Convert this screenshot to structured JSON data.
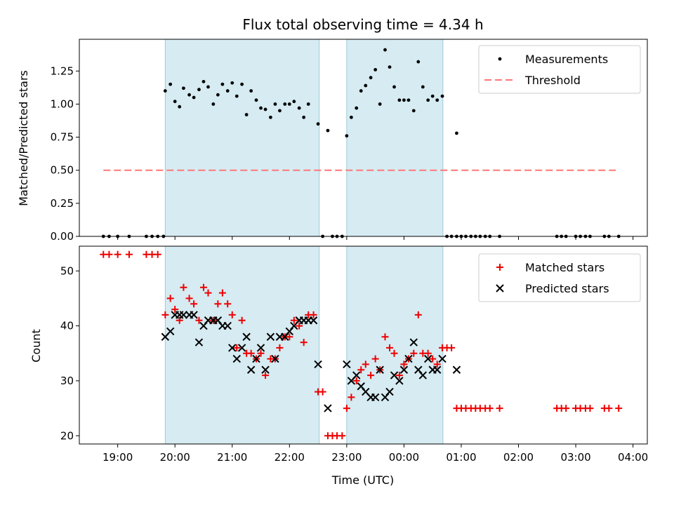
{
  "chart_data": [
    {
      "type": "scatter",
      "panel": "top",
      "title": "Flux total observing time = 4.34 h",
      "xlabel": "",
      "ylabel": "Matched/Predicted stars",
      "xlim": [
        18.33,
        28.25
      ],
      "ylim": [
        0,
        1.49
      ],
      "yticks": [
        0,
        0.25,
        0.5,
        0.75,
        1.0,
        1.25
      ],
      "ytick_labels": [
        "0.00",
        "0.25",
        "0.50",
        "0.75",
        "1.00",
        "1.25"
      ],
      "legend_position": "top-right",
      "legend": [
        "Measurements",
        "Threshold"
      ],
      "shaded_intervals": [
        [
          19.83,
          22.52
        ],
        [
          23.0,
          24.68
        ]
      ],
      "threshold": {
        "name": "Threshold",
        "y": 0.5,
        "x_start": 18.75,
        "x_end": 27.75,
        "color": "#ff7777"
      },
      "series": [
        {
          "name": "Measurements",
          "color": "#000000",
          "points": [
            [
              18.75,
              0
            ],
            [
              18.85,
              0
            ],
            [
              19.0,
              0
            ],
            [
              19.2,
              0
            ],
            [
              19.5,
              0
            ],
            [
              19.6,
              0
            ],
            [
              19.7,
              0
            ],
            [
              19.8,
              0
            ],
            [
              19.83,
              1.1
            ],
            [
              19.92,
              1.15
            ],
            [
              20.0,
              1.02
            ],
            [
              20.08,
              0.98
            ],
            [
              20.15,
              1.12
            ],
            [
              20.25,
              1.07
            ],
            [
              20.33,
              1.05
            ],
            [
              20.42,
              1.11
            ],
            [
              20.5,
              1.17
            ],
            [
              20.58,
              1.13
            ],
            [
              20.67,
              1.0
            ],
            [
              20.75,
              1.07
            ],
            [
              20.83,
              1.15
            ],
            [
              20.92,
              1.1
            ],
            [
              21.0,
              1.16
            ],
            [
              21.08,
              1.06
            ],
            [
              21.17,
              1.15
            ],
            [
              21.25,
              0.92
            ],
            [
              21.33,
              1.1
            ],
            [
              21.42,
              1.03
            ],
            [
              21.5,
              0.97
            ],
            [
              21.58,
              0.96
            ],
            [
              21.67,
              0.9
            ],
            [
              21.75,
              1.0
            ],
            [
              21.83,
              0.95
            ],
            [
              21.92,
              1.0
            ],
            [
              22.0,
              1.0
            ],
            [
              22.08,
              1.02
            ],
            [
              22.17,
              0.97
            ],
            [
              22.25,
              0.9
            ],
            [
              22.33,
              1.0
            ],
            [
              22.5,
              0.85
            ],
            [
              22.67,
              0.8
            ],
            [
              22.58,
              0
            ],
            [
              22.75,
              0
            ],
            [
              22.83,
              0
            ],
            [
              22.92,
              0
            ],
            [
              23.0,
              0.76
            ],
            [
              23.08,
              0.9
            ],
            [
              23.17,
              0.97
            ],
            [
              23.25,
              1.1
            ],
            [
              23.33,
              1.14
            ],
            [
              23.42,
              1.2
            ],
            [
              23.5,
              1.26
            ],
            [
              23.58,
              1.0
            ],
            [
              23.67,
              1.41
            ],
            [
              23.75,
              1.28
            ],
            [
              23.83,
              1.13
            ],
            [
              23.92,
              1.03
            ],
            [
              24.0,
              1.03
            ],
            [
              24.08,
              1.03
            ],
            [
              24.17,
              0.95
            ],
            [
              24.25,
              1.32
            ],
            [
              24.33,
              1.13
            ],
            [
              24.42,
              1.03
            ],
            [
              24.5,
              1.06
            ],
            [
              24.58,
              1.03
            ],
            [
              24.67,
              1.06
            ],
            [
              24.92,
              0.78
            ],
            [
              24.75,
              0
            ],
            [
              24.83,
              0
            ],
            [
              24.92,
              0
            ],
            [
              25.0,
              0
            ],
            [
              25.08,
              0
            ],
            [
              25.17,
              0
            ],
            [
              25.25,
              0
            ],
            [
              25.33,
              0
            ],
            [
              25.42,
              0
            ],
            [
              25.5,
              0
            ],
            [
              25.67,
              0
            ],
            [
              26.67,
              0
            ],
            [
              26.75,
              0
            ],
            [
              26.83,
              0
            ],
            [
              27.0,
              0
            ],
            [
              27.08,
              0
            ],
            [
              27.17,
              0
            ],
            [
              27.25,
              0
            ],
            [
              27.5,
              0
            ],
            [
              27.58,
              0
            ],
            [
              27.75,
              0
            ]
          ]
        }
      ]
    },
    {
      "type": "scatter",
      "panel": "bottom",
      "title": "",
      "xlabel": "Time (UTC)",
      "ylabel": "Count",
      "xlim": [
        18.33,
        28.25
      ],
      "ylim": [
        18.5,
        54.5
      ],
      "yticks": [
        20,
        30,
        40,
        50
      ],
      "ytick_labels": [
        "20",
        "30",
        "40",
        "50"
      ],
      "xticks": [
        19,
        20,
        21,
        22,
        23,
        24,
        25,
        26,
        27,
        28
      ],
      "xtick_labels": [
        "19:00",
        "20:00",
        "21:00",
        "22:00",
        "23:00",
        "00:00",
        "01:00",
        "02:00",
        "03:00",
        "04:00"
      ],
      "legend_position": "top-right",
      "legend": [
        "Matched stars",
        "Predicted stars"
      ],
      "shaded_intervals": [
        [
          19.83,
          22.52
        ],
        [
          23.0,
          24.68
        ]
      ],
      "series": [
        {
          "name": "Matched stars",
          "marker": "plus",
          "color": "#ee0000",
          "points": [
            [
              18.75,
              53
            ],
            [
              18.85,
              53
            ],
            [
              19.0,
              53
            ],
            [
              19.2,
              53
            ],
            [
              19.5,
              53
            ],
            [
              19.6,
              53
            ],
            [
              19.7,
              53
            ],
            [
              19.83,
              42
            ],
            [
              19.92,
              45
            ],
            [
              20.0,
              43
            ],
            [
              20.08,
              41
            ],
            [
              20.15,
              47
            ],
            [
              20.25,
              45
            ],
            [
              20.33,
              44
            ],
            [
              20.42,
              41
            ],
            [
              20.5,
              47
            ],
            [
              20.58,
              46
            ],
            [
              20.67,
              41
            ],
            [
              20.75,
              44
            ],
            [
              20.83,
              46
            ],
            [
              20.92,
              44
            ],
            [
              21.0,
              42
            ],
            [
              21.08,
              36
            ],
            [
              21.17,
              41
            ],
            [
              21.25,
              35
            ],
            [
              21.33,
              35
            ],
            [
              21.42,
              34
            ],
            [
              21.5,
              35
            ],
            [
              21.58,
              31
            ],
            [
              21.67,
              34
            ],
            [
              21.75,
              34
            ],
            [
              21.83,
              36
            ],
            [
              21.92,
              38
            ],
            [
              22.0,
              38
            ],
            [
              22.08,
              41
            ],
            [
              22.17,
              40
            ],
            [
              22.25,
              37
            ],
            [
              22.33,
              42
            ],
            [
              22.42,
              42
            ],
            [
              22.5,
              28
            ],
            [
              22.58,
              28
            ],
            [
              22.67,
              20
            ],
            [
              22.75,
              20
            ],
            [
              22.83,
              20
            ],
            [
              22.92,
              20
            ],
            [
              23.0,
              25
            ],
            [
              23.08,
              27
            ],
            [
              23.17,
              30
            ],
            [
              23.25,
              32
            ],
            [
              23.33,
              33
            ],
            [
              23.42,
              31
            ],
            [
              23.5,
              34
            ],
            [
              23.58,
              32
            ],
            [
              23.67,
              38
            ],
            [
              23.75,
              36
            ],
            [
              23.83,
              35
            ],
            [
              23.92,
              31
            ],
            [
              24.0,
              33
            ],
            [
              24.08,
              34
            ],
            [
              24.17,
              35
            ],
            [
              24.25,
              42
            ],
            [
              24.33,
              35
            ],
            [
              24.42,
              35
            ],
            [
              24.5,
              34
            ],
            [
              24.58,
              33
            ],
            [
              24.67,
              36
            ],
            [
              24.75,
              36
            ],
            [
              24.83,
              36
            ],
            [
              24.92,
              25
            ],
            [
              25.0,
              25
            ],
            [
              25.08,
              25
            ],
            [
              25.17,
              25
            ],
            [
              25.25,
              25
            ],
            [
              25.33,
              25
            ],
            [
              25.42,
              25
            ],
            [
              25.5,
              25
            ],
            [
              25.67,
              25
            ],
            [
              26.67,
              25
            ],
            [
              26.75,
              25
            ],
            [
              26.83,
              25
            ],
            [
              27.0,
              25
            ],
            [
              27.08,
              25
            ],
            [
              27.17,
              25
            ],
            [
              27.25,
              25
            ],
            [
              27.5,
              25
            ],
            [
              27.58,
              25
            ],
            [
              27.75,
              25
            ]
          ]
        },
        {
          "name": "Predicted stars",
          "marker": "x",
          "color": "#000000",
          "points": [
            [
              19.83,
              38
            ],
            [
              19.92,
              39
            ],
            [
              20.0,
              42
            ],
            [
              20.08,
              42
            ],
            [
              20.15,
              42
            ],
            [
              20.25,
              42
            ],
            [
              20.33,
              42
            ],
            [
              20.42,
              37
            ],
            [
              20.5,
              40
            ],
            [
              20.58,
              41
            ],
            [
              20.67,
              41
            ],
            [
              20.75,
              41
            ],
            [
              20.83,
              40
            ],
            [
              20.92,
              40
            ],
            [
              21.0,
              36
            ],
            [
              21.08,
              34
            ],
            [
              21.17,
              36
            ],
            [
              21.25,
              38
            ],
            [
              21.33,
              32
            ],
            [
              21.42,
              34
            ],
            [
              21.5,
              36
            ],
            [
              21.58,
              32
            ],
            [
              21.67,
              38
            ],
            [
              21.75,
              34
            ],
            [
              21.83,
              38
            ],
            [
              21.92,
              38
            ],
            [
              22.0,
              39
            ],
            [
              22.08,
              40
            ],
            [
              22.17,
              41
            ],
            [
              22.25,
              41
            ],
            [
              22.33,
              41
            ],
            [
              22.42,
              41
            ],
            [
              22.5,
              33
            ],
            [
              22.67,
              25
            ],
            [
              23.0,
              33
            ],
            [
              23.08,
              30
            ],
            [
              23.17,
              31
            ],
            [
              23.25,
              29
            ],
            [
              23.33,
              28
            ],
            [
              23.42,
              27
            ],
            [
              23.5,
              27
            ],
            [
              23.58,
              32
            ],
            [
              23.67,
              27
            ],
            [
              23.75,
              28
            ],
            [
              23.83,
              31
            ],
            [
              23.92,
              30
            ],
            [
              24.0,
              32
            ],
            [
              24.08,
              34
            ],
            [
              24.17,
              37
            ],
            [
              24.25,
              32
            ],
            [
              24.33,
              31
            ],
            [
              24.42,
              34
            ],
            [
              24.5,
              32
            ],
            [
              24.58,
              32
            ],
            [
              24.67,
              34
            ],
            [
              24.92,
              32
            ]
          ]
        }
      ]
    }
  ]
}
